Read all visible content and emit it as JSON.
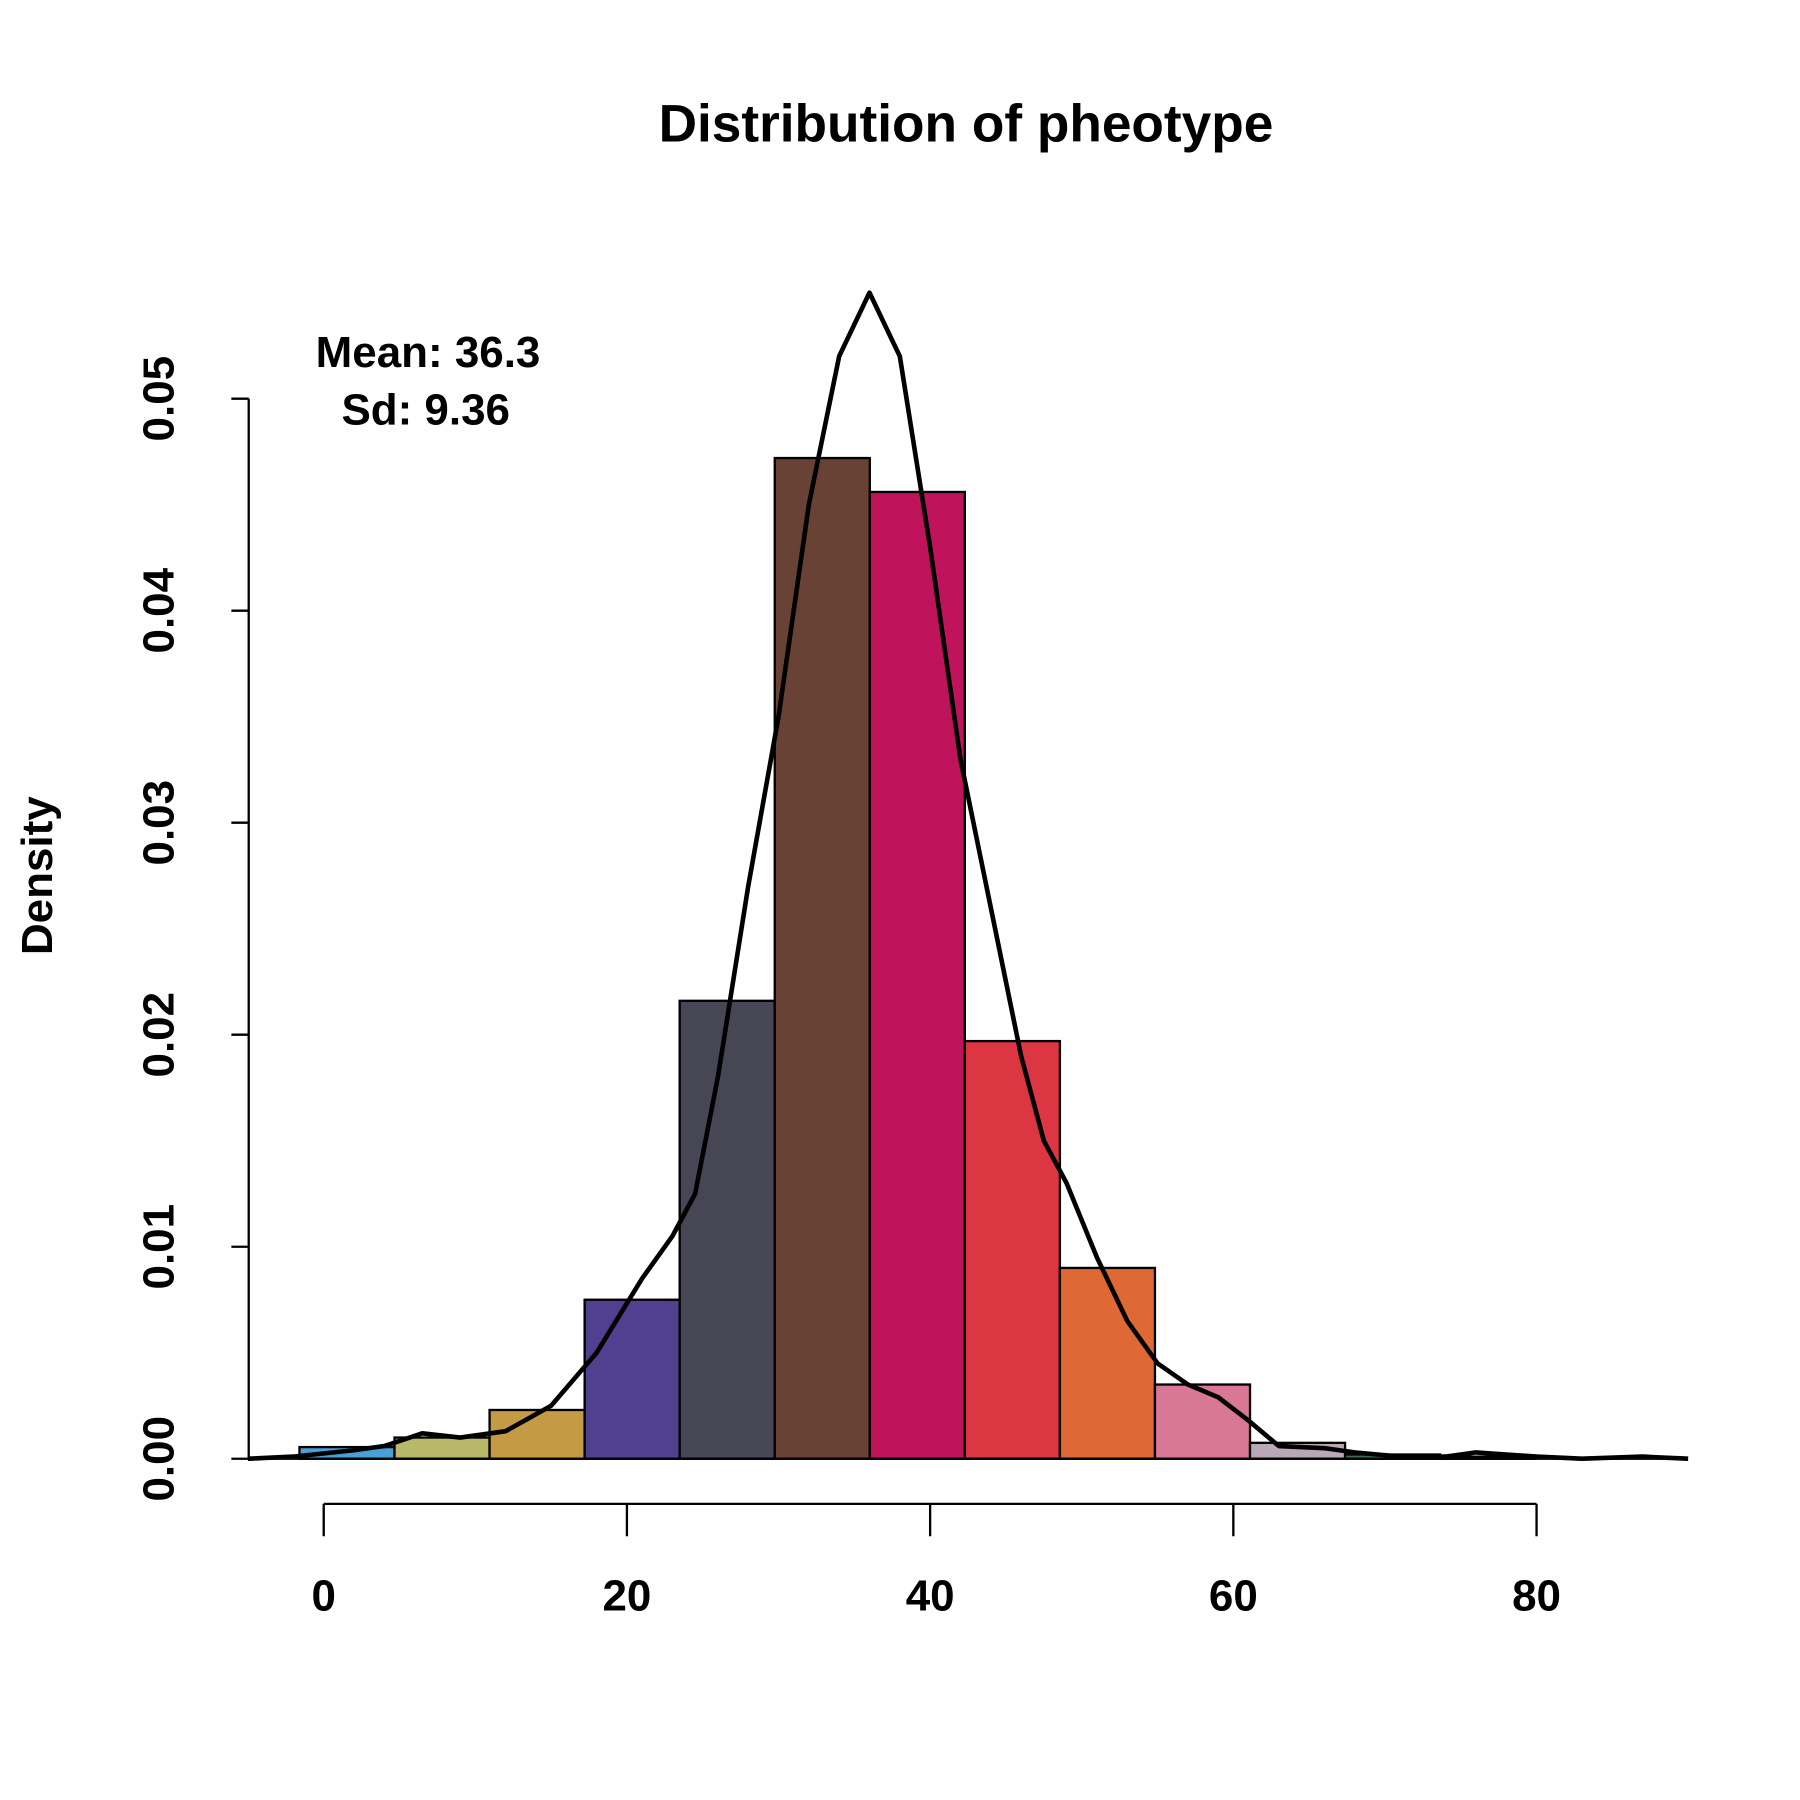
{
  "chart_data": {
    "type": "histogram",
    "title": "Distribution of pheotype",
    "y_label": "Density",
    "annotations": [
      "Mean: 36.3",
      "Sd: 9.36"
    ],
    "bins": [
      -1.6,
      4.67,
      10.94,
      17.21,
      23.48,
      29.75,
      36.02,
      42.29,
      48.56,
      54.83,
      61.1,
      67.37,
      73.64,
      79.91
    ],
    "values": [
      0.00055,
      0.001,
      0.0023,
      0.0075,
      0.0216,
      0.0472,
      0.0456,
      0.0197,
      0.009,
      0.0035,
      0.00075,
      0.0002,
      0.0001
    ],
    "colors": [
      "#4a9fd6",
      "#b8b86a",
      "#c49a45",
      "#51408f",
      "#464655",
      "#684335",
      "#bf145c",
      "#dc3642",
      "#e06834",
      "#d97896",
      "#b9a8b8",
      "#3a6a5a",
      "#7a5040"
    ],
    "density_curve": {
      "color": "#000000",
      "x": [
        -5,
        -2,
        2,
        4,
        6.5,
        9,
        12,
        15,
        18,
        21,
        23,
        24.5,
        26,
        28,
        30,
        32,
        34,
        36,
        38,
        40,
        42,
        44,
        46,
        47.5,
        49,
        51,
        53,
        55,
        57,
        59,
        61,
        63,
        66,
        68,
        71,
        74,
        76,
        78,
        80,
        83,
        87,
        90
      ],
      "y": [
        0,
        0.0001,
        0.0004,
        0.0006,
        0.0012,
        0.001,
        0.0013,
        0.0025,
        0.005,
        0.0085,
        0.0105,
        0.0125,
        0.018,
        0.027,
        0.035,
        0.045,
        0.052,
        0.055,
        0.052,
        0.043,
        0.033,
        0.026,
        0.019,
        0.015,
        0.013,
        0.0095,
        0.0065,
        0.0045,
        0.0035,
        0.0029,
        0.0018,
        0.0006,
        0.0005,
        0.0003,
        0.0001,
        0.0001,
        0.0003,
        0.0002,
        0.0001,
        0,
        0.0001,
        0
      ]
    },
    "xlim": [
      -5.1,
      89.9
    ],
    "ylim": [
      0,
      0.055
    ],
    "xticks": [
      0,
      20,
      40,
      60,
      80
    ],
    "yticks": [
      {
        "value": 0,
        "label": "0.00"
      },
      0.01,
      0.02,
      0.03,
      0.04,
      0.05
    ]
  }
}
